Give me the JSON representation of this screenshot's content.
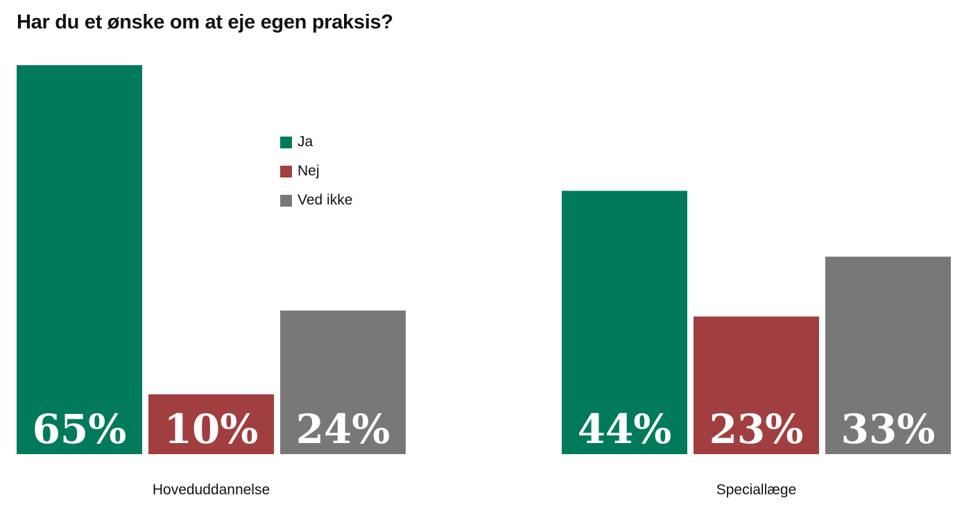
{
  "title": "Har du et ønske om at eje egen praksis?",
  "colors": {
    "ja": "#007a5a",
    "nej": "#a03e40",
    "ved_ikke": "#787878"
  },
  "legend": [
    {
      "label": "Ja",
      "color": "#007a5a"
    },
    {
      "label": "Nej",
      "color": "#a03e40"
    },
    {
      "label": "Ved ikke",
      "color": "#787878"
    }
  ],
  "chart_data": {
    "type": "bar",
    "title": "Har du et ønske om at eje egen praksis?",
    "categories": [
      "Hoveduddannelse",
      "Speciallæge"
    ],
    "series": [
      {
        "name": "Ja",
        "values": [
          65,
          44
        ],
        "labels": [
          "65%",
          "44%"
        ],
        "color": "#007a5a"
      },
      {
        "name": "Nej",
        "values": [
          10,
          23
        ],
        "labels": [
          "10%",
          "23%"
        ],
        "color": "#a03e40"
      },
      {
        "name": "Ved ikke",
        "values": [
          24,
          33
        ],
        "labels": [
          "24%",
          "33%"
        ],
        "color": "#787878"
      }
    ],
    "ylim": [
      0,
      65
    ],
    "grid": false,
    "legend_position": "top-center"
  }
}
